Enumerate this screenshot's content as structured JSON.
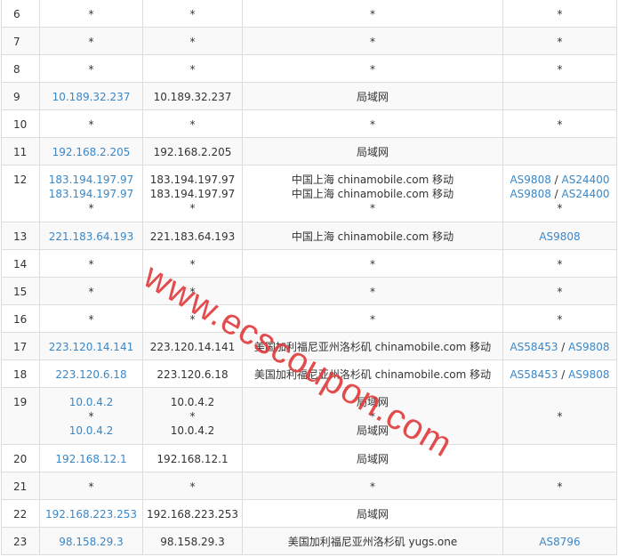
{
  "rows": [
    {
      "hop": "6",
      "ip": [
        "*"
      ],
      "host": [
        "*"
      ],
      "loc": [
        "*"
      ],
      "as": [
        [
          "*"
        ]
      ]
    },
    {
      "hop": "7",
      "ip": [
        "*"
      ],
      "host": [
        "*"
      ],
      "loc": [
        "*"
      ],
      "as": [
        [
          "*"
        ]
      ]
    },
    {
      "hop": "8",
      "ip": [
        "*"
      ],
      "host": [
        "*"
      ],
      "loc": [
        "*"
      ],
      "as": [
        [
          "*"
        ]
      ]
    },
    {
      "hop": "9",
      "ip": [
        "10.189.32.237"
      ],
      "host": [
        "10.189.32.237"
      ],
      "loc": [
        "局域网"
      ],
      "as": [
        []
      ]
    },
    {
      "hop": "10",
      "ip": [
        "*"
      ],
      "host": [
        "*"
      ],
      "loc": [
        "*"
      ],
      "as": [
        [
          "*"
        ]
      ]
    },
    {
      "hop": "11",
      "ip": [
        "192.168.2.205"
      ],
      "host": [
        "192.168.2.205"
      ],
      "loc": [
        "局域网"
      ],
      "as": [
        []
      ]
    },
    {
      "hop": "12",
      "ip": [
        "183.194.197.97",
        "183.194.197.97",
        "*"
      ],
      "host": [
        "183.194.197.97",
        "183.194.197.97",
        "*"
      ],
      "loc": [
        "中国上海 chinamobile.com 移动",
        "中国上海 chinamobile.com 移动",
        "*"
      ],
      "as": [
        [
          "AS9808",
          "AS24400"
        ],
        [
          "AS9808",
          "AS24400"
        ],
        [
          "*"
        ]
      ]
    },
    {
      "hop": "13",
      "ip": [
        "221.183.64.193"
      ],
      "host": [
        "221.183.64.193"
      ],
      "loc": [
        "中国上海 chinamobile.com 移动"
      ],
      "as": [
        [
          "AS9808"
        ]
      ]
    },
    {
      "hop": "14",
      "ip": [
        "*"
      ],
      "host": [
        "*"
      ],
      "loc": [
        "*"
      ],
      "as": [
        [
          "*"
        ]
      ]
    },
    {
      "hop": "15",
      "ip": [
        "*"
      ],
      "host": [
        "*"
      ],
      "loc": [
        "*"
      ],
      "as": [
        [
          "*"
        ]
      ]
    },
    {
      "hop": "16",
      "ip": [
        "*"
      ],
      "host": [
        "*"
      ],
      "loc": [
        "*"
      ],
      "as": [
        [
          "*"
        ]
      ]
    },
    {
      "hop": "17",
      "ip": [
        "223.120.14.141"
      ],
      "host": [
        "223.120.14.141"
      ],
      "loc": [
        "美国加利福尼亚州洛杉矶 chinamobile.com 移动"
      ],
      "as": [
        [
          "AS58453",
          "AS9808"
        ]
      ]
    },
    {
      "hop": "18",
      "ip": [
        "223.120.6.18"
      ],
      "host": [
        "223.120.6.18"
      ],
      "loc": [
        "美国加利福尼亚州洛杉矶 chinamobile.com 移动"
      ],
      "as": [
        [
          "AS58453",
          "AS9808"
        ]
      ]
    },
    {
      "hop": "19",
      "ip": [
        "10.0.4.2",
        "*",
        "10.0.4.2"
      ],
      "host": [
        "10.0.4.2",
        "*",
        "10.0.4.2"
      ],
      "loc": [
        "局域网",
        "*",
        "局域网"
      ],
      "as": [
        [],
        [
          "*"
        ],
        []
      ]
    },
    {
      "hop": "20",
      "ip": [
        "192.168.12.1"
      ],
      "host": [
        "192.168.12.1"
      ],
      "loc": [
        "局域网"
      ],
      "as": [
        []
      ]
    },
    {
      "hop": "21",
      "ip": [
        "*"
      ],
      "host": [
        "*"
      ],
      "loc": [
        "*"
      ],
      "as": [
        [
          "*"
        ]
      ]
    },
    {
      "hop": "22",
      "ip": [
        "192.168.223.253"
      ],
      "host": [
        "192.168.223.253"
      ],
      "loc": [
        "局域网"
      ],
      "as": [
        []
      ]
    },
    {
      "hop": "23",
      "ip": [
        "98.158.29.3"
      ],
      "host": [
        "98.158.29.3"
      ],
      "loc": [
        "美国加利福尼亚州洛杉矶 yugs.one"
      ],
      "as": [
        [
          "AS8796"
        ]
      ]
    }
  ],
  "watermark": "www.ecscoupon.com",
  "colors": {
    "link": "#3a87c8",
    "stripe": "#f9f9f9",
    "watermark": "#e03a3a"
  }
}
